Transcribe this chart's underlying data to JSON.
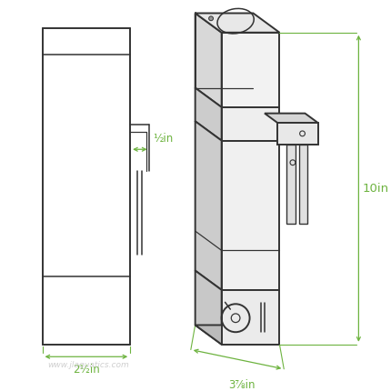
{
  "bg_color": "#ffffff",
  "line_color": "#333333",
  "dim_color": "#6db33f",
  "watermark_color": "#bbbbbb",
  "watermark_text": "www.jlaquatics.com",
  "dim_labels": {
    "width_left": "2½in",
    "bracket": "½in",
    "height_right": "10in",
    "width_bottom": "3⅞in"
  },
  "figsize": [
    4.3,
    4.3
  ],
  "dpi": 100
}
